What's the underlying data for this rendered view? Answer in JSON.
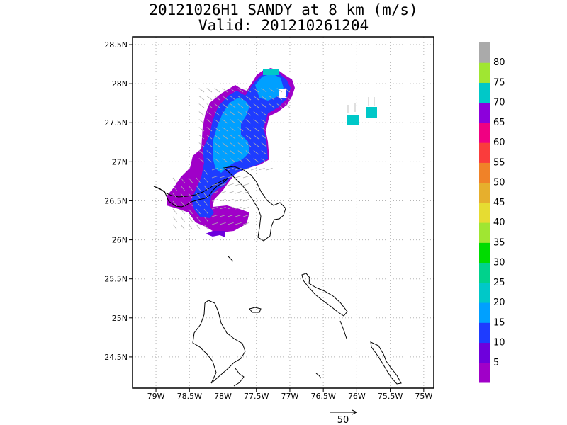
{
  "header": {
    "title_line1": "20121026H1 SANDY at 8 km (m/s)",
    "title_line2": "Valid: 201210261204"
  },
  "map": {
    "lon_range": [
      -79.35,
      -74.85
    ],
    "lat_range": [
      24.1,
      28.6
    ],
    "x_ticks": [
      {
        "value": -79.0,
        "label": "79W"
      },
      {
        "value": -78.5,
        "label": "78.5W"
      },
      {
        "value": -78.0,
        "label": "78W"
      },
      {
        "value": -77.5,
        "label": "77.5W"
      },
      {
        "value": -77.0,
        "label": "77W"
      },
      {
        "value": -76.5,
        "label": "76.5W"
      },
      {
        "value": -76.0,
        "label": "76W"
      },
      {
        "value": -75.5,
        "label": "75.5W"
      },
      {
        "value": -75.0,
        "label": "75W"
      }
    ],
    "y_ticks": [
      {
        "value": 24.5,
        "label": "24.5N"
      },
      {
        "value": 25.0,
        "label": "25N"
      },
      {
        "value": 25.5,
        "label": "25.5N"
      },
      {
        "value": 26.0,
        "label": "26N"
      },
      {
        "value": 26.5,
        "label": "26.5N"
      },
      {
        "value": 27.0,
        "label": "27N"
      },
      {
        "value": 27.5,
        "label": "27.5N"
      },
      {
        "value": 28.0,
        "label": "28N"
      },
      {
        "value": 28.5,
        "label": "28.5N"
      }
    ],
    "gridlines": true
  },
  "colorbar": {
    "labels": [
      "5",
      "10",
      "15",
      "20",
      "25",
      "30",
      "35",
      "40",
      "45",
      "50",
      "55",
      "60",
      "65",
      "70",
      "75",
      "80"
    ],
    "colors": [
      "#a000c8",
      "#6e00dc",
      "#1e3cff",
      "#00a0ff",
      "#00c8c8",
      "#00d28c",
      "#00dc00",
      "#a0e632",
      "#e6dc32",
      "#e6af2d",
      "#f08228",
      "#fa3c3c",
      "#f00082",
      "#8c00dc",
      "#00c8c8",
      "#a0e632",
      "#aaaaaa"
    ]
  },
  "reference_vector": {
    "label": "50"
  }
}
